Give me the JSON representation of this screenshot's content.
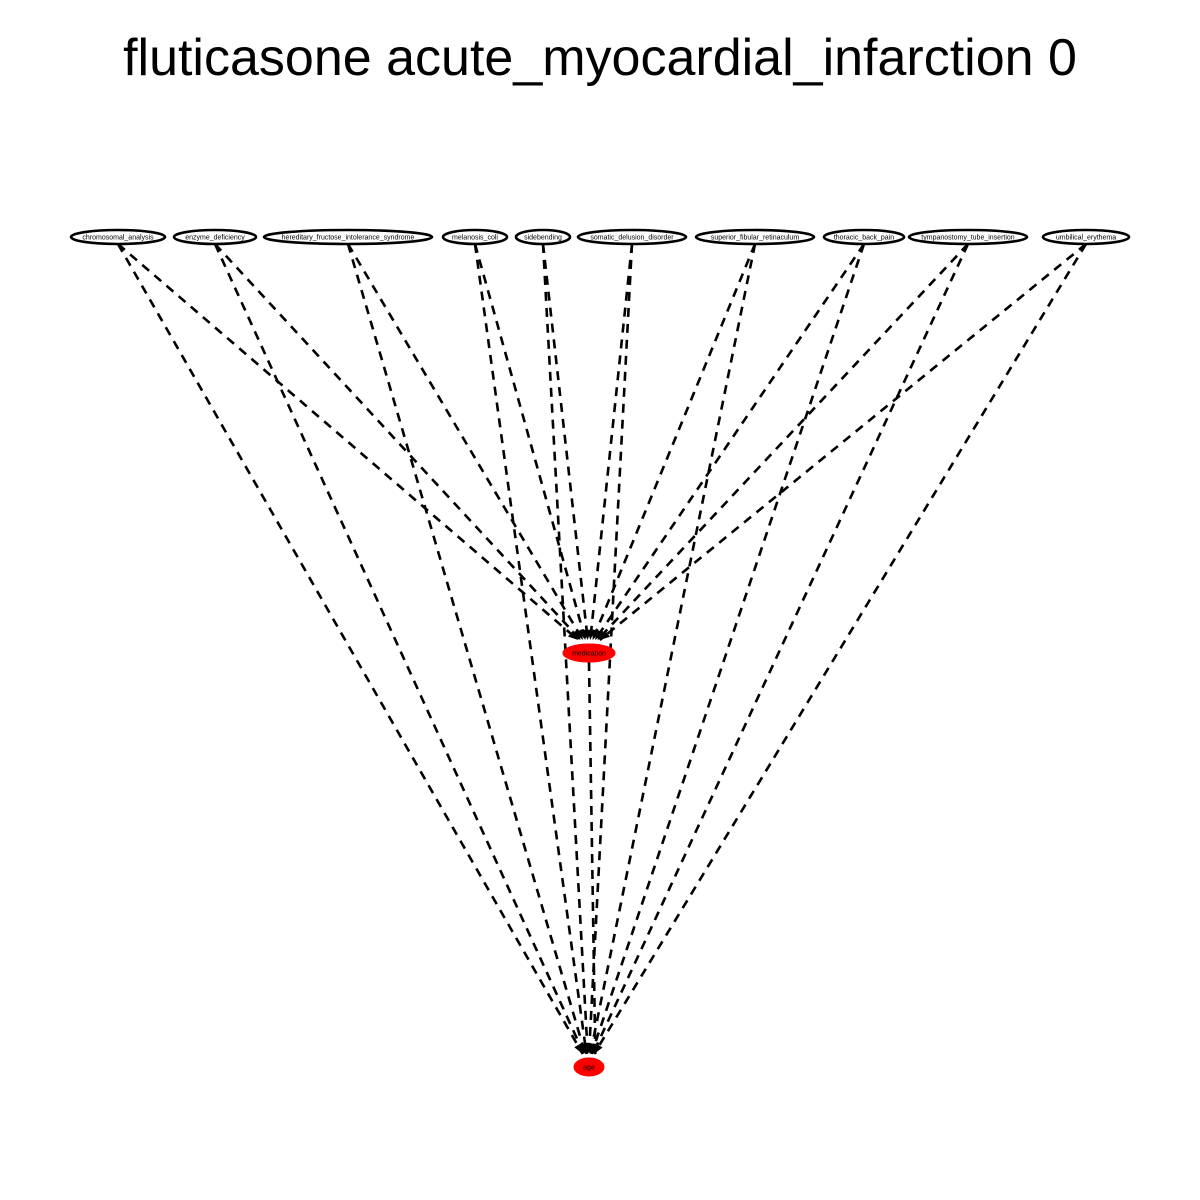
{
  "title": "fluticasone acute_myocardial_infarction 0",
  "colors": {
    "source_node_fill": "#ffffff",
    "target_node_fill": "#ff0000",
    "edge": "#000000"
  },
  "edge_style": "dashed",
  "nodes": {
    "top": [
      {
        "id": "chromosomal_analysis",
        "label": "chromosomal_analysis"
      },
      {
        "id": "enzyme_deficiency",
        "label": "enzyme_deficiency"
      },
      {
        "id": "hereditary_fructose_intolerance_syndrome",
        "label": "hereditary_fructose_intolerance_syndrome"
      },
      {
        "id": "melanosis_coli",
        "label": "melanosis_coli"
      },
      {
        "id": "sidebending",
        "label": "sidebending"
      },
      {
        "id": "somatic_delusion_disorder",
        "label": "somatic_delusion_disorder"
      },
      {
        "id": "superior_fibular_retinaculum",
        "label": "superior_fibular_retinaculum"
      },
      {
        "id": "thoracic_back_pain",
        "label": "thoracic_back_pain"
      },
      {
        "id": "tympanostomy_tube_insertion",
        "label": "tympanostomy_tube_insertion"
      },
      {
        "id": "umbilical_erythema",
        "label": "umbilical_erythema"
      }
    ],
    "middle": {
      "id": "medication",
      "label": "medication"
    },
    "bottom": {
      "id": "age",
      "label": "age"
    }
  },
  "edges": [
    {
      "from": "chromosomal_analysis",
      "to": "medication"
    },
    {
      "from": "chromosomal_analysis",
      "to": "age"
    },
    {
      "from": "enzyme_deficiency",
      "to": "medication"
    },
    {
      "from": "enzyme_deficiency",
      "to": "age"
    },
    {
      "from": "hereditary_fructose_intolerance_syndrome",
      "to": "medication"
    },
    {
      "from": "hereditary_fructose_intolerance_syndrome",
      "to": "age"
    },
    {
      "from": "melanosis_coli",
      "to": "medication"
    },
    {
      "from": "melanosis_coli",
      "to": "age"
    },
    {
      "from": "sidebending",
      "to": "medication"
    },
    {
      "from": "sidebending",
      "to": "age"
    },
    {
      "from": "somatic_delusion_disorder",
      "to": "medication"
    },
    {
      "from": "somatic_delusion_disorder",
      "to": "age"
    },
    {
      "from": "superior_fibular_retinaculum",
      "to": "medication"
    },
    {
      "from": "superior_fibular_retinaculum",
      "to": "age"
    },
    {
      "from": "thoracic_back_pain",
      "to": "medication"
    },
    {
      "from": "thoracic_back_pain",
      "to": "age"
    },
    {
      "from": "tympanostomy_tube_insertion",
      "to": "medication"
    },
    {
      "from": "tympanostomy_tube_insertion",
      "to": "age"
    },
    {
      "from": "umbilical_erythema",
      "to": "medication"
    },
    {
      "from": "umbilical_erythema",
      "to": "age"
    },
    {
      "from": "medication",
      "to": "age"
    }
  ]
}
